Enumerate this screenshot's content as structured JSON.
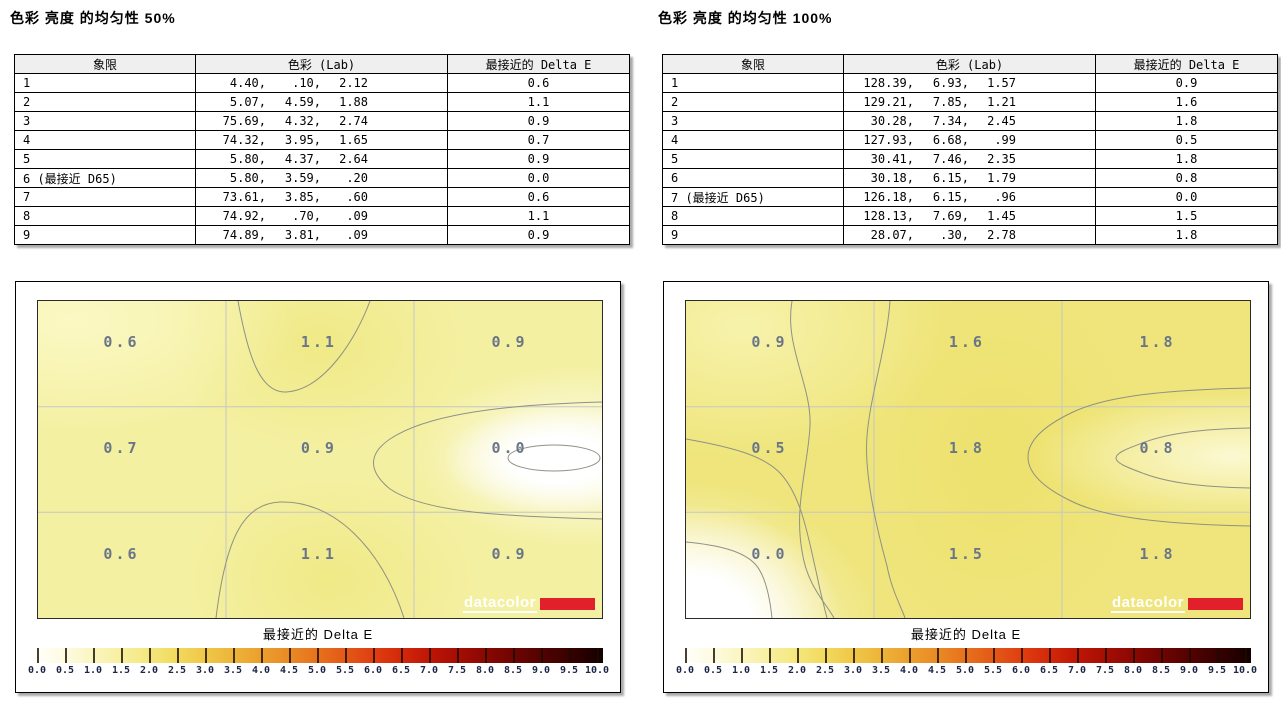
{
  "colors": {
    "logo_red": "#e2202c",
    "header_bg": "#efefef",
    "heatmap_label": "#6a7688",
    "contour": "#8f9184",
    "grid_line": "#c6c6c6",
    "scale_label": "#1c2545",
    "heatmap_base_50": "#f4f0a2",
    "heatmap_base_100": "#efe57c",
    "scale_gradient": [
      "#ffffff",
      "#fefce6",
      "#fbf6c6",
      "#f8f0a4",
      "#f5e882",
      "#f2db60",
      "#efc94a",
      "#edb63a",
      "#eba02e",
      "#e98b25",
      "#e7721d",
      "#e35817",
      "#df3e10",
      "#d2270a",
      "#bc1506",
      "#a30d04",
      "#870703",
      "#6a0402",
      "#4e0201",
      "#320100",
      "#140000"
    ]
  },
  "panels": [
    {
      "title": "色彩 亮度 的均匀性 50%",
      "table": {
        "headers": [
          "象限",
          "色彩 (Lab)",
          "最接近的 Delta E"
        ],
        "rows": [
          [
            "1",
            "4.40,",
            ".10,",
            "2.12",
            "0.6"
          ],
          [
            "2",
            "5.07,",
            "4.59,",
            "1.88",
            "1.1"
          ],
          [
            "3",
            "75.69,",
            "4.32,",
            "2.74",
            "0.9"
          ],
          [
            "4",
            "74.32,",
            "3.95,",
            "1.65",
            "0.7"
          ],
          [
            "5",
            "5.80,",
            "4.37,",
            "2.64",
            "0.9"
          ],
          [
            "6 (最接近 D65)",
            "5.80,",
            "3.59,",
            ".20",
            "0.0"
          ],
          [
            "7",
            "73.61,",
            "3.85,",
            ".60",
            "0.6"
          ],
          [
            "8",
            "74.92,",
            ".70,",
            ".09",
            "1.1"
          ],
          [
            "9",
            "74.89,",
            "3.81,",
            ".09",
            "0.9"
          ]
        ]
      },
      "heatmap": {
        "values": [
          [
            "0.6",
            "1.1",
            "0.9"
          ],
          [
            "0.7",
            "0.9",
            "0.0"
          ],
          [
            "0.6",
            "1.1",
            "0.9"
          ]
        ],
        "logo_text": "datacolor"
      },
      "scale": {
        "title": "最接近的 Delta E",
        "ticks": [
          "0.0",
          "0.5",
          "1.0",
          "1.5",
          "2.0",
          "2.5",
          "3.0",
          "3.5",
          "4.0",
          "4.5",
          "5.0",
          "5.5",
          "6.0",
          "6.5",
          "7.0",
          "7.5",
          "8.0",
          "8.5",
          "9.0",
          "9.5",
          "10.0"
        ]
      }
    },
    {
      "title": "色彩 亮度 的均匀性 100%",
      "table": {
        "headers": [
          "象限",
          "色彩 (Lab)",
          "最接近的 Delta E"
        ],
        "rows": [
          [
            "1",
            "128.39,",
            "6.93,",
            "1.57",
            "0.9"
          ],
          [
            "2",
            "129.21,",
            "7.85,",
            "1.21",
            "1.6"
          ],
          [
            "3",
            "30.28,",
            "7.34,",
            "2.45",
            "1.8"
          ],
          [
            "4",
            "127.93,",
            "6.68,",
            ".99",
            "0.5"
          ],
          [
            "5",
            "30.41,",
            "7.46,",
            "2.35",
            "1.8"
          ],
          [
            "6",
            "30.18,",
            "6.15,",
            "1.79",
            "0.8"
          ],
          [
            "7 (最接近 D65)",
            "126.18,",
            "6.15,",
            ".96",
            "0.0"
          ],
          [
            "8",
            "128.13,",
            "7.69,",
            "1.45",
            "1.5"
          ],
          [
            "9",
            "28.07,",
            ".30,",
            "2.78",
            "1.8"
          ]
        ]
      },
      "heatmap": {
        "values": [
          [
            "0.9",
            "1.6",
            "1.8"
          ],
          [
            "0.5",
            "1.8",
            "0.8"
          ],
          [
            "0.0",
            "1.5",
            "1.8"
          ]
        ],
        "logo_text": "datacolor"
      },
      "scale": {
        "title": "最接近的 Delta E",
        "ticks": [
          "0.0",
          "0.5",
          "1.0",
          "1.5",
          "2.0",
          "2.5",
          "3.0",
          "3.5",
          "4.0",
          "4.5",
          "5.0",
          "5.5",
          "6.0",
          "6.5",
          "7.0",
          "7.5",
          "8.0",
          "8.5",
          "9.0",
          "9.5",
          "10.0"
        ]
      }
    }
  ],
  "chart_data": [
    {
      "type": "heatmap",
      "title": "色彩 亮度 的均匀性 50%",
      "values": [
        [
          0.6,
          1.1,
          0.9
        ],
        [
          0.7,
          0.9,
          0.0
        ],
        [
          0.6,
          1.1,
          0.9
        ]
      ],
      "colorbar_label": "最接近的 Delta E",
      "colorbar_range": [
        0.0,
        10.0
      ],
      "colorbar_tick_step": 0.5,
      "grid": "3x3 quadrants, contour lines on, light gray quadrant grid"
    },
    {
      "type": "heatmap",
      "title": "色彩 亮度 的均匀性 100%",
      "values": [
        [
          0.9,
          1.6,
          1.8
        ],
        [
          0.5,
          1.8,
          0.8
        ],
        [
          0.0,
          1.5,
          1.8
        ]
      ],
      "colorbar_label": "最接近的 Delta E",
      "colorbar_range": [
        0.0,
        10.0
      ],
      "colorbar_tick_step": 0.5,
      "grid": "3x3 quadrants, contour lines on, light gray quadrant grid"
    }
  ]
}
